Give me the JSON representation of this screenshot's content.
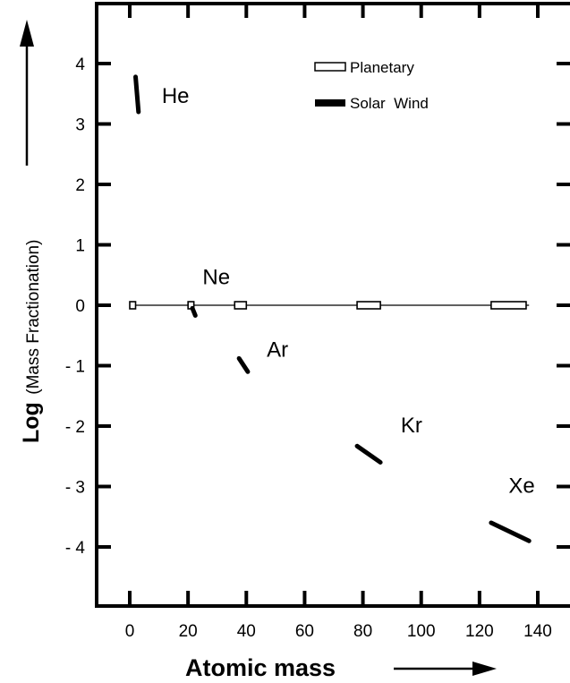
{
  "chart_data": {
    "type": "scatter",
    "title": "",
    "xlabel": "Atomic mass",
    "ylabel": "Log",
    "ylabel_suffix": "(Mass Fractionation)",
    "xlim": [
      -5,
      142
    ],
    "ylim": [
      -4.9,
      4.95
    ],
    "x_ticks": [
      0,
      20,
      40,
      60,
      80,
      100,
      120,
      140
    ],
    "x_tick_labels": [
      "0",
      "20",
      "40",
      "60",
      "80",
      "100",
      "120",
      "140"
    ],
    "y_ticks": [
      4,
      3,
      2,
      1,
      0,
      -1,
      -2,
      -3,
      -4
    ],
    "y_tick_labels": [
      "4",
      "3",
      "2",
      "1",
      "0",
      "- 1",
      "- 2",
      "- 3",
      "- 4"
    ],
    "grid": false,
    "legend": {
      "position": "top-right",
      "items": [
        {
          "label": "Planetary",
          "style": "open-box"
        },
        {
          "label": "Solar  Wind",
          "style": "filled-bar"
        }
      ]
    },
    "reference_line": {
      "y": 0,
      "x_range": [
        0,
        137
      ]
    },
    "series": [
      {
        "name": "Planetary",
        "style": "open-box",
        "points": [
          {
            "x_range": [
              0,
              2
            ],
            "y": 0
          },
          {
            "x_range": [
              20,
              22
            ],
            "y": 0
          },
          {
            "x_range": [
              36,
              40
            ],
            "y": 0
          },
          {
            "x_range": [
              78,
              86
            ],
            "y": 0
          },
          {
            "x_range": [
              124,
              136
            ],
            "y": 0
          }
        ]
      },
      {
        "name": "Solar  Wind",
        "style": "filled-bar",
        "segments": [
          {
            "element": "He",
            "x": [
              2,
              3
            ],
            "y": [
              3.78,
              3.2
            ]
          },
          {
            "element": "Ne",
            "x": [
              21.5,
              22.5
            ],
            "y": [
              -0.05,
              -0.17
            ]
          },
          {
            "element": "Ar",
            "x": [
              37.5,
              40.5
            ],
            "y": [
              -0.88,
              -1.1
            ]
          },
          {
            "element": "Kr",
            "x": [
              78,
              86
            ],
            "y": [
              -2.33,
              -2.6
            ]
          },
          {
            "element": "Xe",
            "x": [
              124,
              137
            ],
            "y": [
              -3.6,
              -3.9
            ]
          }
        ]
      }
    ],
    "annotations": [
      {
        "text": "He",
        "x": 11,
        "y": 3.35
      },
      {
        "text": "Ne",
        "x": 25,
        "y": 0.35
      },
      {
        "text": "Ar",
        "x": 47,
        "y": -0.85
      },
      {
        "text": "Kr",
        "x": 93,
        "y": -2.1
      },
      {
        "text": "Xe",
        "x": 130,
        "y": -3.1
      }
    ]
  }
}
